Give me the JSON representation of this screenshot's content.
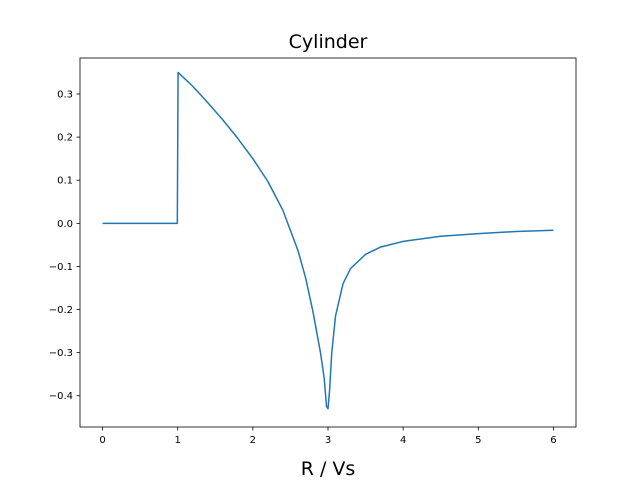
{
  "chart_data": {
    "type": "line",
    "title": "Cylinder",
    "xlabel": "R / Vs",
    "ylabel": "",
    "xlim": [
      -0.3,
      6.3
    ],
    "ylim": [
      -0.4725,
      0.3835
    ],
    "x_ticks": [
      0,
      1,
      2,
      3,
      4,
      5,
      6
    ],
    "x_tick_labels": [
      "0",
      "1",
      "2",
      "3",
      "4",
      "5",
      "6"
    ],
    "y_ticks": [
      -0.4,
      -0.3,
      -0.2,
      -0.1,
      0.0,
      0.1,
      0.2,
      0.3
    ],
    "y_tick_labels": [
      "−0.4",
      "−0.3",
      "−0.2",
      "−0.1",
      "0.0",
      "0.1",
      "0.2",
      "0.3"
    ],
    "grid": false,
    "series": [
      {
        "color": "#1f77b4",
        "x": [
          0,
          0.5,
          0.995,
          1.005,
          1.2,
          1.4,
          1.6,
          1.8,
          2.0,
          2.2,
          2.4,
          2.6,
          2.7,
          2.8,
          2.9,
          2.95,
          2.98,
          3.0,
          3.02,
          3.05,
          3.1,
          3.2,
          3.3,
          3.5,
          3.7,
          4.0,
          4.5,
          5.0,
          5.5,
          6.0
        ],
        "y": [
          0,
          0,
          0,
          0.35,
          0.318,
          0.28,
          0.24,
          0.197,
          0.15,
          0.097,
          0.03,
          -0.063,
          -0.125,
          -0.205,
          -0.3,
          -0.36,
          -0.425,
          -0.43,
          -0.39,
          -0.3,
          -0.215,
          -0.14,
          -0.105,
          -0.072,
          -0.055,
          -0.042,
          -0.03,
          -0.024,
          -0.019,
          -0.016
        ]
      }
    ]
  }
}
